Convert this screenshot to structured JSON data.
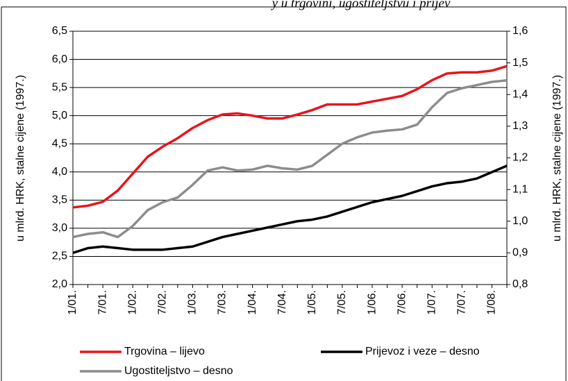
{
  "chart_data": {
    "type": "line",
    "title": "y u trgovini, ugostiteljstvu i prijev",
    "ylabel": "u mlrd. HRK, stalne cijene (1997.)",
    "y2label": "u mlrd. HRK, stalne cijene (1997.)",
    "categories": [
      "1/01.",
      null,
      "7/01.",
      null,
      "1/02.",
      null,
      "7/02.",
      null,
      "1/03.",
      null,
      "7/03.",
      null,
      "1/04.",
      null,
      "7/04.",
      null,
      "1/05.",
      null,
      "7/05.",
      null,
      "1/06.",
      null,
      "7/06.",
      null,
      "1/07.",
      null,
      "7/07.",
      null,
      "1/08.",
      null
    ],
    "series": [
      {
        "name": "Trgovina – lijevo",
        "color": "#e8141c",
        "axis": "y",
        "values": [
          3.37,
          3.4,
          3.47,
          3.67,
          3.97,
          4.27,
          4.45,
          4.6,
          4.78,
          4.92,
          5.02,
          5.04,
          5.0,
          4.95,
          4.95,
          5.02,
          5.1,
          5.2,
          5.2,
          5.2,
          5.25,
          5.3,
          5.35,
          5.47,
          5.63,
          5.75,
          5.77,
          5.77,
          5.8,
          5.88
        ]
      },
      {
        "name": "Prijevoz i veze – desno",
        "color": "#000000",
        "axis": "y2",
        "values": [
          0.9,
          0.915,
          0.92,
          0.915,
          0.91,
          0.91,
          0.91,
          0.915,
          0.92,
          0.935,
          0.95,
          0.96,
          0.97,
          0.98,
          0.99,
          1.0,
          1.005,
          1.015,
          1.03,
          1.045,
          1.06,
          1.07,
          1.08,
          1.095,
          1.11,
          1.12,
          1.125,
          1.135,
          1.155,
          1.175
        ]
      },
      {
        "name": "Ugostiteljstvo – desno",
        "color": "#8c8c8c",
        "axis": "y2",
        "values": [
          0.95,
          0.96,
          0.965,
          0.95,
          0.985,
          1.035,
          1.06,
          1.075,
          1.115,
          1.16,
          1.17,
          1.16,
          1.163,
          1.175,
          1.167,
          1.163,
          1.175,
          1.21,
          1.245,
          1.265,
          1.28,
          1.286,
          1.29,
          1.305,
          1.36,
          1.405,
          1.42,
          1.43,
          1.44,
          1.445
        ]
      }
    ],
    "ylim": [
      2.0,
      6.5
    ],
    "yticks": [
      {
        "value": 2.0,
        "label": "2,0"
      },
      {
        "value": 2.5,
        "label": "2,5"
      },
      {
        "value": 3.0,
        "label": "3,0"
      },
      {
        "value": 3.5,
        "label": "3,5"
      },
      {
        "value": 4.0,
        "label": "4,0"
      },
      {
        "value": 4.5,
        "label": "4,5"
      },
      {
        "value": 5.0,
        "label": "5,0"
      },
      {
        "value": 5.5,
        "label": "5,5"
      },
      {
        "value": 6.0,
        "label": "6,0"
      },
      {
        "value": 6.5,
        "label": "6,5"
      }
    ],
    "y2lim": [
      0.8,
      1.6
    ],
    "y2ticks": [
      {
        "value": 0.8,
        "label": "0,8"
      },
      {
        "value": 0.9,
        "label": "0,9"
      },
      {
        "value": 1.0,
        "label": "1,0"
      },
      {
        "value": 1.1,
        "label": "1,1"
      },
      {
        "value": 1.2,
        "label": "1,2"
      },
      {
        "value": 1.3,
        "label": "1,3"
      },
      {
        "value": 1.4,
        "label": "1,4"
      },
      {
        "value": 1.5,
        "label": "1,5"
      },
      {
        "value": 1.6,
        "label": "1,6"
      }
    ],
    "grid": true,
    "legend": "bottom"
  }
}
